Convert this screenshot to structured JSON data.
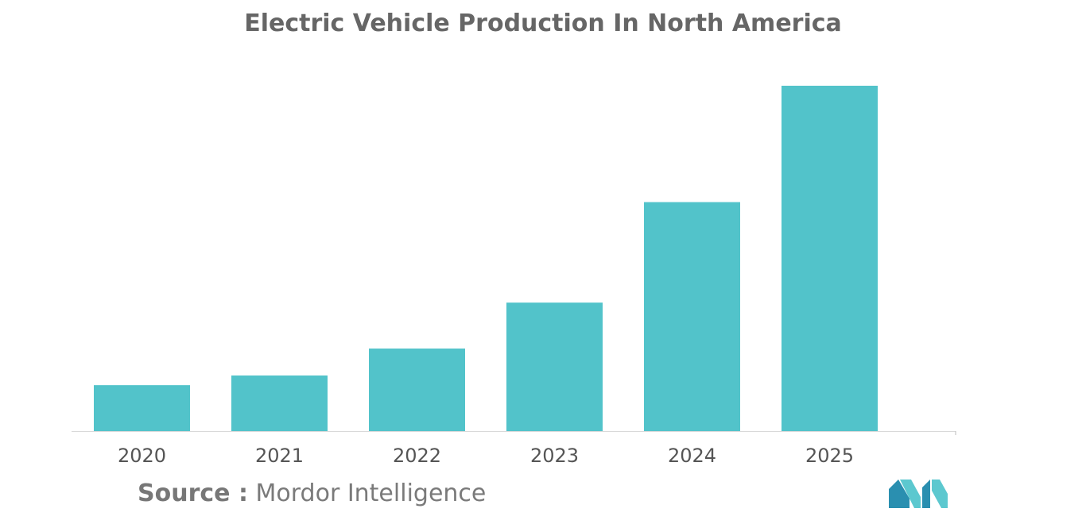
{
  "chart_data": {
    "type": "bar",
    "title": "Electric Vehicle Production In North America",
    "categories": [
      "2020",
      "2021",
      "2022",
      "2023",
      "2024",
      "2025"
    ],
    "values": [
      13.3,
      16.1,
      23.9,
      37.2,
      66.3,
      100
    ],
    "xlabel": "",
    "ylabel": "",
    "ylim": [
      0,
      100
    ],
    "grid": false,
    "legend": "none",
    "bar_color": "#52c3ca"
  },
  "source": {
    "prefix": "Source :",
    "name": "Mordor Intelligence"
  },
  "colors": {
    "title": "#666666",
    "logo_dark": "#2a8fb0",
    "logo_light": "#5cc8cf"
  }
}
